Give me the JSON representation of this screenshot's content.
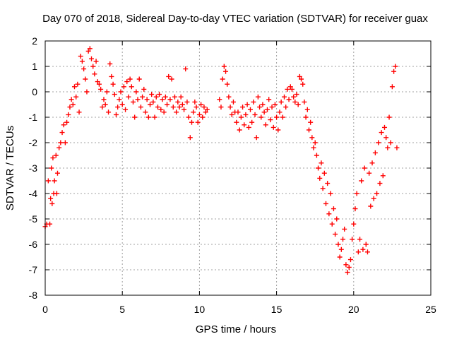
{
  "chart_data": {
    "type": "scatter",
    "title": "Day 070 of 2018, Sidereal Day-to-day VTEC variation (SDTVAR) for receiver guax",
    "xlabel": "GPS time / hours",
    "ylabel": "SDTVAR / TECUs",
    "xlim": [
      0,
      25
    ],
    "ylim": [
      -8,
      2
    ],
    "xticks": [
      0,
      5,
      10,
      15,
      20,
      25
    ],
    "yticks": [
      2,
      1,
      0,
      -1,
      -2,
      -3,
      -4,
      -5,
      -6,
      -7,
      -8
    ],
    "grid": true,
    "marker": "+",
    "marker_color": "#ff0000",
    "series": [
      {
        "name": "SDTVAR",
        "points": [
          [
            0.0,
            -5.3
          ],
          [
            0.1,
            -5.2
          ],
          [
            0.2,
            -3.5
          ],
          [
            0.3,
            -5.2
          ],
          [
            0.35,
            -4.2
          ],
          [
            0.4,
            -3.0
          ],
          [
            0.45,
            -4.4
          ],
          [
            0.5,
            -2.6
          ],
          [
            0.55,
            -4.0
          ],
          [
            0.6,
            -3.5
          ],
          [
            0.7,
            -2.5
          ],
          [
            0.75,
            -4.0
          ],
          [
            0.8,
            -3.2
          ],
          [
            0.9,
            -2.2
          ],
          [
            1.0,
            -2.0
          ],
          [
            1.1,
            -1.6
          ],
          [
            1.2,
            -1.3
          ],
          [
            1.3,
            -2.0
          ],
          [
            1.4,
            -1.2
          ],
          [
            1.5,
            -0.9
          ],
          [
            1.6,
            -0.6
          ],
          [
            1.7,
            -0.3
          ],
          [
            1.8,
            -0.5
          ],
          [
            1.9,
            0.2
          ],
          [
            2.0,
            -0.2
          ],
          [
            2.1,
            0.3
          ],
          [
            2.2,
            -0.8
          ],
          [
            2.3,
            1.4
          ],
          [
            2.4,
            1.2
          ],
          [
            2.5,
            0.9
          ],
          [
            2.6,
            0.5
          ],
          [
            2.7,
            0.0
          ],
          [
            2.8,
            1.6
          ],
          [
            2.9,
            1.7
          ],
          [
            3.0,
            1.3
          ],
          [
            3.1,
            1.0
          ],
          [
            3.2,
            0.7
          ],
          [
            3.3,
            1.2
          ],
          [
            3.4,
            0.4
          ],
          [
            3.5,
            0.3
          ],
          [
            3.6,
            0.1
          ],
          [
            3.7,
            -0.6
          ],
          [
            3.8,
            -0.3
          ],
          [
            3.9,
            -0.5
          ],
          [
            4.0,
            0.0
          ],
          [
            4.1,
            -0.8
          ],
          [
            4.2,
            1.1
          ],
          [
            4.3,
            0.6
          ],
          [
            4.4,
            0.3
          ],
          [
            4.5,
            -0.1
          ],
          [
            4.6,
            -0.9
          ],
          [
            4.7,
            -0.6
          ],
          [
            4.8,
            -0.3
          ],
          [
            4.9,
            0.0
          ],
          [
            5.0,
            -0.5
          ],
          [
            5.1,
            0.2
          ],
          [
            5.2,
            -0.7
          ],
          [
            5.3,
            0.4
          ],
          [
            5.4,
            -0.2
          ],
          [
            5.5,
            0.5
          ],
          [
            5.6,
            0.2
          ],
          [
            5.7,
            -0.4
          ],
          [
            5.8,
            -1.0
          ],
          [
            5.9,
            0.0
          ],
          [
            6.0,
            -0.3
          ],
          [
            6.1,
            0.5
          ],
          [
            6.2,
            -0.6
          ],
          [
            6.3,
            -0.2
          ],
          [
            6.4,
            0.1
          ],
          [
            6.5,
            -0.8
          ],
          [
            6.6,
            -0.3
          ],
          [
            6.7,
            -1.0
          ],
          [
            6.8,
            -0.5
          ],
          [
            6.9,
            -0.1
          ],
          [
            7.0,
            -0.4
          ],
          [
            7.1,
            -1.0
          ],
          [
            7.2,
            -0.2
          ],
          [
            7.3,
            -0.6
          ],
          [
            7.4,
            -0.1
          ],
          [
            7.5,
            -0.7
          ],
          [
            7.6,
            -0.3
          ],
          [
            7.7,
            -0.8
          ],
          [
            7.8,
            -0.2
          ],
          [
            7.9,
            -0.5
          ],
          [
            8.0,
            0.6
          ],
          [
            8.1,
            -0.3
          ],
          [
            8.2,
            0.5
          ],
          [
            8.3,
            -0.6
          ],
          [
            8.4,
            -0.2
          ],
          [
            8.5,
            -0.8
          ],
          [
            8.6,
            -0.4
          ],
          [
            8.7,
            -0.6
          ],
          [
            8.8,
            -0.2
          ],
          [
            8.9,
            -0.5
          ],
          [
            9.0,
            -0.7
          ],
          [
            9.1,
            0.9
          ],
          [
            9.2,
            -0.4
          ],
          [
            9.3,
            -1.0
          ],
          [
            9.4,
            -1.8
          ],
          [
            9.5,
            -1.2
          ],
          [
            9.6,
            -0.8
          ],
          [
            9.7,
            -0.4
          ],
          [
            9.8,
            -0.6
          ],
          [
            9.9,
            -1.2
          ],
          [
            10.0,
            -0.9
          ],
          [
            10.1,
            -0.5
          ],
          [
            10.2,
            -1.0
          ],
          [
            10.3,
            -0.6
          ],
          [
            10.4,
            -0.8
          ],
          [
            10.5,
            -0.7
          ],
          [
            11.3,
            -0.3
          ],
          [
            11.4,
            -0.6
          ],
          [
            11.5,
            0.5
          ],
          [
            11.6,
            1.0
          ],
          [
            11.7,
            0.8
          ],
          [
            11.8,
            0.3
          ],
          [
            11.9,
            -0.2
          ],
          [
            12.0,
            -0.6
          ],
          [
            12.1,
            -0.9
          ],
          [
            12.2,
            -0.4
          ],
          [
            12.3,
            -0.8
          ],
          [
            12.4,
            -1.2
          ],
          [
            12.5,
            -0.8
          ],
          [
            12.6,
            -1.5
          ],
          [
            12.7,
            -1.0
          ],
          [
            12.8,
            -0.6
          ],
          [
            12.9,
            -1.3
          ],
          [
            13.0,
            -0.9
          ],
          [
            13.1,
            -0.5
          ],
          [
            13.2,
            -1.4
          ],
          [
            13.3,
            -0.7
          ],
          [
            13.4,
            -1.2
          ],
          [
            13.5,
            -0.4
          ],
          [
            13.6,
            -0.9
          ],
          [
            13.7,
            -1.8
          ],
          [
            13.8,
            -0.2
          ],
          [
            13.9,
            -0.6
          ],
          [
            14.0,
            -1.0
          ],
          [
            14.1,
            -0.5
          ],
          [
            14.2,
            -0.8
          ],
          [
            14.3,
            -1.3
          ],
          [
            14.4,
            -0.7
          ],
          [
            14.5,
            -0.3
          ],
          [
            14.6,
            -1.1
          ],
          [
            14.7,
            -0.6
          ],
          [
            14.8,
            -1.4
          ],
          [
            14.9,
            -0.5
          ],
          [
            15.0,
            -1.0
          ],
          [
            15.1,
            -1.5
          ],
          [
            15.2,
            -0.8
          ],
          [
            15.3,
            -0.4
          ],
          [
            15.4,
            -1.0
          ],
          [
            15.5,
            -0.2
          ],
          [
            15.6,
            -0.6
          ],
          [
            15.7,
            0.1
          ],
          [
            15.8,
            -0.3
          ],
          [
            15.9,
            0.2
          ],
          [
            16.0,
            0.1
          ],
          [
            16.1,
            -0.2
          ],
          [
            16.2,
            -0.4
          ],
          [
            16.3,
            -0.1
          ],
          [
            16.4,
            -0.5
          ],
          [
            16.5,
            0.6
          ],
          [
            16.6,
            0.5
          ],
          [
            16.7,
            0.3
          ],
          [
            16.8,
            -0.4
          ],
          [
            16.9,
            -1.0
          ],
          [
            17.0,
            -0.7
          ],
          [
            17.1,
            -1.5
          ],
          [
            17.2,
            -1.2
          ],
          [
            17.3,
            -1.8
          ],
          [
            17.4,
            -2.2
          ],
          [
            17.5,
            -2.0
          ],
          [
            17.6,
            -2.5
          ],
          [
            17.7,
            -3.0
          ],
          [
            17.8,
            -3.4
          ],
          [
            17.9,
            -2.8
          ],
          [
            18.0,
            -3.8
          ],
          [
            18.1,
            -3.2
          ],
          [
            18.2,
            -4.4
          ],
          [
            18.3,
            -3.6
          ],
          [
            18.4,
            -4.8
          ],
          [
            18.5,
            -4.0
          ],
          [
            18.6,
            -5.2
          ],
          [
            18.7,
            -4.6
          ],
          [
            18.8,
            -5.6
          ],
          [
            18.9,
            -5.0
          ],
          [
            19.0,
            -6.0
          ],
          [
            19.1,
            -6.5
          ],
          [
            19.2,
            -6.2
          ],
          [
            19.3,
            -5.8
          ],
          [
            19.4,
            -5.4
          ],
          [
            19.5,
            -6.8
          ],
          [
            19.6,
            -7.1
          ],
          [
            19.7,
            -6.9
          ],
          [
            19.8,
            -6.6
          ],
          [
            19.9,
            -5.8
          ],
          [
            20.0,
            -5.2
          ],
          [
            20.1,
            -4.6
          ],
          [
            20.2,
            -4.0
          ],
          [
            20.3,
            -6.3
          ],
          [
            20.4,
            -5.8
          ],
          [
            20.5,
            -3.5
          ],
          [
            20.6,
            -6.2
          ],
          [
            20.7,
            -3.0
          ],
          [
            20.8,
            -6.0
          ],
          [
            20.9,
            -6.3
          ],
          [
            21.0,
            -3.2
          ],
          [
            21.1,
            -4.5
          ],
          [
            21.2,
            -2.8
          ],
          [
            21.3,
            -4.2
          ],
          [
            21.4,
            -2.4
          ],
          [
            21.5,
            -4.0
          ],
          [
            21.6,
            -2.0
          ],
          [
            21.7,
            -3.6
          ],
          [
            21.8,
            -1.6
          ],
          [
            21.9,
            -3.3
          ],
          [
            22.0,
            -1.4
          ],
          [
            22.1,
            -1.8
          ],
          [
            22.2,
            -2.2
          ],
          [
            22.3,
            -1.0
          ],
          [
            22.4,
            -2.0
          ],
          [
            22.5,
            0.2
          ],
          [
            22.6,
            0.8
          ],
          [
            22.7,
            1.0
          ],
          [
            22.8,
            -2.2
          ]
        ]
      }
    ]
  }
}
